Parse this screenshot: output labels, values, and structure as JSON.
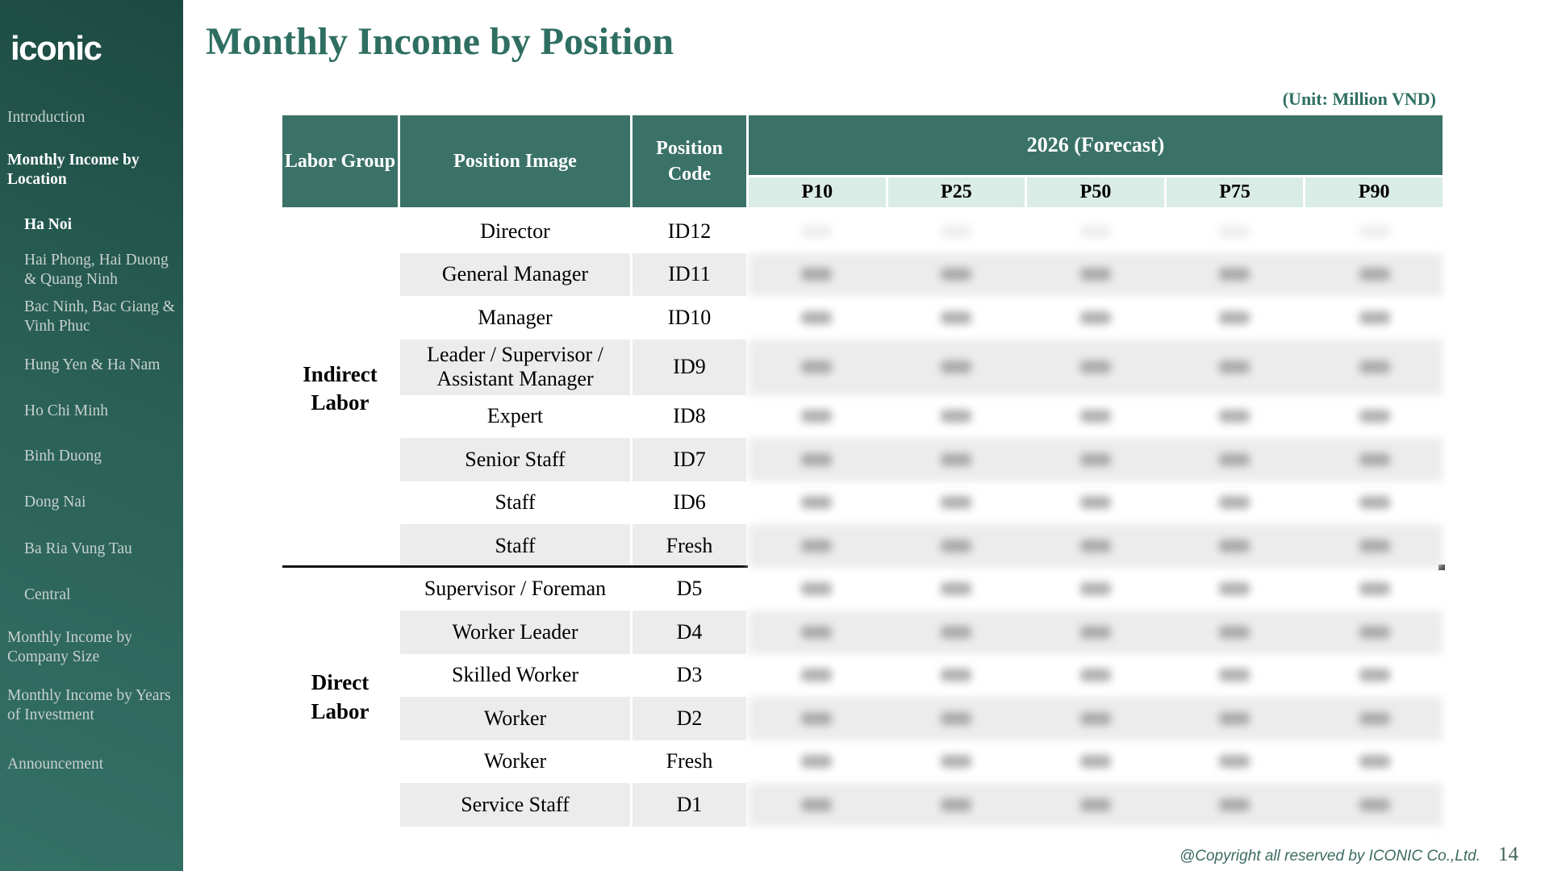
{
  "sidebar": {
    "logo": "iconic",
    "items": [
      {
        "label": "Introduction"
      },
      {
        "label": "Monthly Income by Location"
      },
      {
        "label": "Ha Noi"
      },
      {
        "label": "Hai Phong, Hai Duong & Quang Ninh"
      },
      {
        "label": "Bac Ninh, Bac Giang & Vinh Phuc"
      },
      {
        "label": "Hung Yen & Ha Nam"
      },
      {
        "label": "Ho Chi Minh"
      },
      {
        "label": "Binh Duong"
      },
      {
        "label": "Dong Nai"
      },
      {
        "label": "Ba Ria Vung Tau"
      },
      {
        "label": "Central"
      },
      {
        "label": "Monthly Income by Company Size"
      },
      {
        "label": "Monthly Income by Years of Investment"
      },
      {
        "label": "Announcement"
      }
    ]
  },
  "header": {
    "title": "Monthly Income by Position",
    "unit_note": "(Unit: Million VND)"
  },
  "table": {
    "columns": {
      "labor_group": "Labor Group",
      "position_image": "Position Image",
      "position_code": "Position Code",
      "forecast": "2026 (Forecast)",
      "percentiles": [
        "P10",
        "P25",
        "P50",
        "P75",
        "P90"
      ]
    },
    "groups": [
      {
        "label": "Indirect Labor"
      },
      {
        "label": "Direct Labor"
      }
    ],
    "values_obscured": true,
    "rows": [
      {
        "group": "Indirect Labor",
        "position": "Director",
        "code": "ID12",
        "tall": false,
        "values_blank": true
      },
      {
        "group": "Indirect Labor",
        "position": "General Manager",
        "code": "ID11",
        "tall": false
      },
      {
        "group": "Indirect Labor",
        "position": "Manager",
        "code": "ID10",
        "tall": false
      },
      {
        "group": "Indirect Labor",
        "position": "Leader / Supervisor / Assistant Manager",
        "code": "ID9",
        "tall": true
      },
      {
        "group": "Indirect Labor",
        "position": "Expert",
        "code": "ID8",
        "tall": false
      },
      {
        "group": "Indirect Labor",
        "position": "Senior Staff",
        "code": "ID7",
        "tall": false
      },
      {
        "group": "Indirect Labor",
        "position": "Staff",
        "code": "ID6",
        "tall": false
      },
      {
        "group": "Indirect Labor",
        "position": "Staff",
        "code": "Fresh",
        "tall": false
      },
      {
        "group": "Direct Labor",
        "position": "Supervisor / Foreman",
        "code": "D5",
        "tall": false
      },
      {
        "group": "Direct Labor",
        "position": "Worker Leader",
        "code": "D4",
        "tall": false
      },
      {
        "group": "Direct Labor",
        "position": "Skilled Worker",
        "code": "D3",
        "tall": false
      },
      {
        "group": "Direct Labor",
        "position": "Worker",
        "code": "D2",
        "tall": false
      },
      {
        "group": "Direct Labor",
        "position": "Worker",
        "code": "Fresh",
        "tall": false
      },
      {
        "group": "Direct Labor",
        "position": "Service Staff",
        "code": "D1",
        "tall": false
      }
    ]
  },
  "footer": {
    "copyright": "@Copyright all reserved by ICONIC Co.,Ltd.",
    "page": "14"
  }
}
